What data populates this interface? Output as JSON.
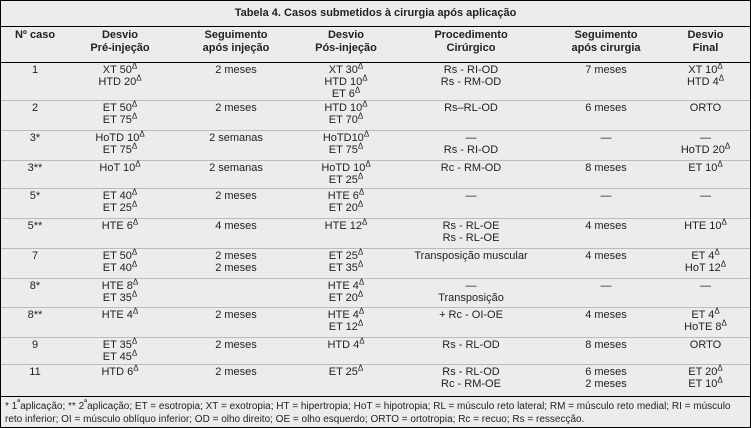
{
  "title": "Tabela 4. Casos submetidos à cirurgia após aplicação",
  "table": {
    "columns": [
      [
        "Nº caso"
      ],
      [
        "Desvio",
        "Pré-injeção"
      ],
      [
        "Seguimento",
        "após injeção"
      ],
      [
        "Desvio",
        "Pós-injeção"
      ],
      [
        "Procedimento",
        "Cirúrgico"
      ],
      [
        "Seguimento",
        "após cirurgia"
      ],
      [
        "Desvio",
        "Final"
      ]
    ],
    "rows": [
      [
        "1",
        [
          "XT 50Δ",
          "HTD 20Δ"
        ],
        [
          "2 meses"
        ],
        [
          "XT 30Δ",
          "HTD 10Δ",
          "ET 6Δ"
        ],
        [
          "Rs - RI-OD",
          "Rs - RM-OD"
        ],
        [
          "7 meses"
        ],
        [
          "XT 10Δ",
          "HTD 4Δ"
        ]
      ],
      [
        "2",
        [
          "ET 50Δ",
          "ET 75Δ"
        ],
        [
          "2 meses"
        ],
        [
          "HTD 10Δ",
          "ET 70Δ"
        ],
        [
          "Rs–RL-OD"
        ],
        [
          "6 meses"
        ],
        [
          "ORTO"
        ]
      ],
      [
        "3*",
        [
          "HoTD 10Δ",
          "ET 75Δ"
        ],
        [
          "2 semanas"
        ],
        [
          "HoTD10Δ",
          "ET 75Δ"
        ],
        [
          "—",
          "Rs - RI-OD"
        ],
        [
          "—"
        ],
        [
          "—",
          "HoTD 20Δ"
        ]
      ],
      [
        "3**",
        [
          "HoT 10Δ"
        ],
        [
          "2 semanas"
        ],
        [
          "HoTD 10Δ",
          "ET 25Δ"
        ],
        [
          "Rc - RM-OD"
        ],
        [
          "8 meses"
        ],
        [
          "ET 10Δ"
        ]
      ],
      [
        "5*",
        [
          "ET 40Δ",
          "ET 25Δ"
        ],
        [
          "2 meses"
        ],
        [
          "HTE 6Δ",
          "ET 20Δ"
        ],
        [
          "—"
        ],
        [
          "—"
        ],
        [
          "—"
        ]
      ],
      [
        "5**",
        [
          "HTE 6Δ"
        ],
        [
          "4 meses"
        ],
        [
          "HTE 12Δ"
        ],
        [
          "Rs - RL-OE",
          "Rs - RL-OE"
        ],
        [
          "4 meses"
        ],
        [
          "HTE 10Δ"
        ]
      ],
      [
        "7",
        [
          "ET 50Δ",
          "ET 40Δ"
        ],
        [
          "2 meses",
          "2 meses"
        ],
        [
          "ET 25Δ",
          "ET 35Δ"
        ],
        [
          "Transposição  muscular"
        ],
        [
          "4 meses"
        ],
        [
          "ET 4Δ",
          "HoT 12Δ"
        ]
      ],
      [
        "8*",
        [
          "HTE 8Δ",
          "ET 35Δ"
        ],
        [],
        [
          "HTE 4Δ",
          "ET 20Δ"
        ],
        [
          "—",
          "Transposição"
        ],
        [
          "—"
        ],
        [
          "—"
        ]
      ],
      [
        "8**",
        [
          "HTE 4Δ"
        ],
        [
          "2 meses"
        ],
        [
          "HTE 4Δ",
          "ET 12Δ"
        ],
        [
          "+ Rc - OI-OE"
        ],
        [
          "4 meses"
        ],
        [
          "ET 4Δ",
          "HoTE 8Δ"
        ]
      ],
      [
        "9",
        [
          "ET 35Δ",
          "ET 45Δ"
        ],
        [
          "2 meses"
        ],
        [
          "HTD 4Δ"
        ],
        [
          "Rs - RL-OD"
        ],
        [
          "8 meses"
        ],
        [
          "ORTO"
        ]
      ],
      [
        "11",
        [
          "HTD 6Δ"
        ],
        [
          "2 meses"
        ],
        [
          "ET 25Δ"
        ],
        [
          "Rs - RL-OD",
          "Rc - RM-OE"
        ],
        [
          "6 meses",
          "2 meses"
        ],
        [
          "ET 20Δ",
          "ET 10Δ"
        ]
      ]
    ],
    "footnote": "* 1ªaplicação; ** 2ªaplicação; ET = esotropia; XT = exotropia; HT = hipertropia; HoT = hipotropia;  RL = músculo reto lateral; RM = músculo reto medial; RI = músculo reto inferior; OI = músculo oblíquo inferior;  OD = olho direito; OE = olho esquerdo; ORTO = ortotropia; Rc = recuo; Rs = ressecção."
  }
}
